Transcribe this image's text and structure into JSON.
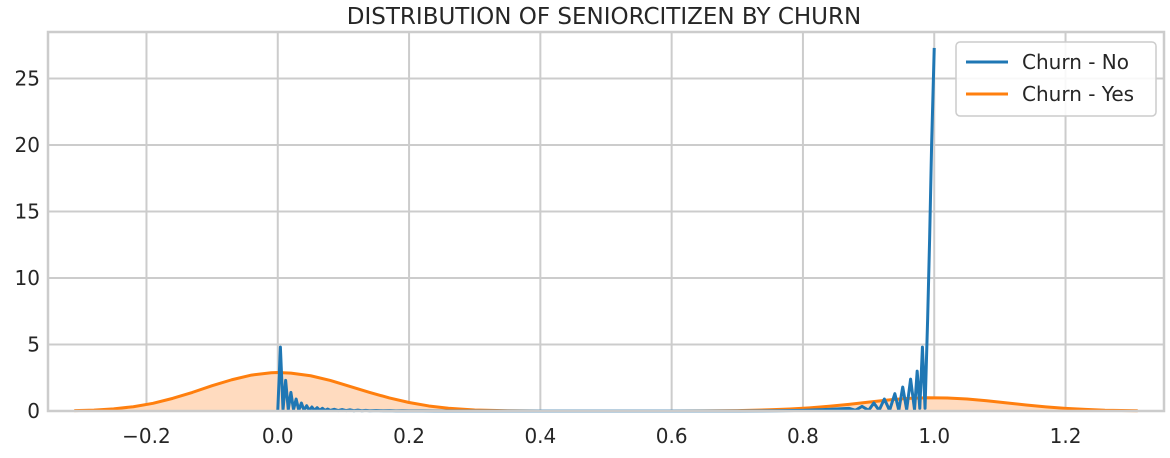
{
  "chart_data": {
    "type": "line",
    "title": "DISTRIBUTION OF SENIORCITIZEN BY CHURN",
    "xlabel": "",
    "ylabel": "",
    "xlim": [
      -0.35,
      1.35
    ],
    "ylim": [
      0,
      28.5
    ],
    "x_ticks": [
      -0.2,
      0.0,
      0.2,
      0.4,
      0.6,
      0.8,
      1.0,
      1.2
    ],
    "x_tick_labels": [
      "−0.2",
      "0.0",
      "0.2",
      "0.4",
      "0.6",
      "0.8",
      "1.0",
      "1.2"
    ],
    "y_ticks": [
      0,
      5,
      10,
      15,
      20,
      25
    ],
    "y_tick_labels": [
      "0",
      "5",
      "10",
      "15",
      "20",
      "25"
    ],
    "grid": true,
    "legend_position": "top-right",
    "series": [
      {
        "name": "Churn - No",
        "color": "#1f77b4",
        "fill": false,
        "x": [
          0.0,
          0.004,
          0.008,
          0.012,
          0.016,
          0.02,
          0.024,
          0.028,
          0.032,
          0.036,
          0.04,
          0.044,
          0.048,
          0.052,
          0.056,
          0.06,
          0.064,
          0.068,
          0.072,
          0.076,
          0.08,
          0.086,
          0.092,
          0.098,
          0.104,
          0.11,
          0.116,
          0.122,
          0.128,
          0.134,
          0.14,
          0.15,
          0.16,
          0.17,
          0.18,
          0.19,
          0.2,
          0.22,
          0.24,
          0.26,
          0.3,
          0.4,
          0.5,
          0.6,
          0.7,
          0.76,
          0.8,
          0.83,
          0.85,
          0.87,
          0.88,
          0.89,
          0.9,
          0.908,
          0.916,
          0.924,
          0.932,
          0.94,
          0.946,
          0.952,
          0.958,
          0.964,
          0.97,
          0.974,
          0.978,
          0.982,
          0.986,
          0.99,
          0.993,
          0.996,
          1.0
        ],
        "y": [
          0.0,
          4.8,
          0.1,
          2.3,
          0.1,
          1.4,
          0.1,
          0.9,
          0.05,
          0.6,
          0.05,
          0.4,
          0.05,
          0.3,
          0.05,
          0.25,
          0.05,
          0.2,
          0.04,
          0.15,
          0.04,
          0.13,
          0.03,
          0.11,
          0.03,
          0.09,
          0.02,
          0.07,
          0.02,
          0.05,
          0.02,
          0.04,
          0.02,
          0.03,
          0.01,
          0.02,
          0.01,
          0.01,
          0.0,
          0.0,
          0.0,
          0.0,
          0.0,
          0.0,
          0.0,
          0.02,
          0.05,
          0.1,
          0.15,
          0.2,
          0.05,
          0.35,
          0.05,
          0.6,
          0.05,
          0.9,
          0.05,
          1.3,
          0.05,
          1.8,
          0.1,
          2.4,
          0.1,
          3.0,
          0.2,
          4.8,
          0.2,
          7.0,
          13.0,
          20.0,
          27.3
        ]
      },
      {
        "name": "Churn - Yes",
        "color": "#ff7f0e",
        "fill": true,
        "fill_color": "#ffdbbf",
        "x": [
          -0.31,
          -0.28,
          -0.25,
          -0.22,
          -0.19,
          -0.16,
          -0.13,
          -0.1,
          -0.07,
          -0.04,
          -0.01,
          0.0,
          0.02,
          0.05,
          0.08,
          0.11,
          0.14,
          0.17,
          0.2,
          0.23,
          0.26,
          0.3,
          0.35,
          0.4,
          0.45,
          0.5,
          0.55,
          0.6,
          0.65,
          0.7,
          0.75,
          0.78,
          0.81,
          0.84,
          0.87,
          0.9,
          0.93,
          0.96,
          0.99,
          1.02,
          1.05,
          1.08,
          1.11,
          1.14,
          1.17,
          1.2,
          1.23,
          1.26,
          1.31
        ],
        "y": [
          0.03,
          0.07,
          0.16,
          0.32,
          0.58,
          0.95,
          1.4,
          1.9,
          2.35,
          2.7,
          2.88,
          2.9,
          2.85,
          2.65,
          2.3,
          1.85,
          1.4,
          0.98,
          0.64,
          0.38,
          0.21,
          0.08,
          0.02,
          0.0,
          0.0,
          0.0,
          0.0,
          0.0,
          0.01,
          0.03,
          0.09,
          0.15,
          0.24,
          0.36,
          0.5,
          0.67,
          0.83,
          0.95,
          1.0,
          0.98,
          0.9,
          0.77,
          0.61,
          0.45,
          0.31,
          0.2,
          0.12,
          0.06,
          0.02
        ]
      }
    ]
  }
}
